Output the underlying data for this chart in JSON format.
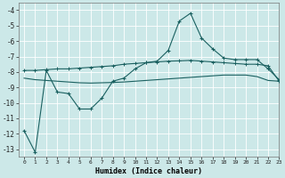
{
  "xlabel": "Humidex (Indice chaleur)",
  "background_color": "#cce8e8",
  "grid_color": "#b0d8d8",
  "line_color": "#1a6060",
  "xlim": [
    -0.5,
    23
  ],
  "ylim": [
    -13.5,
    -3.5
  ],
  "yticks": [
    -4,
    -5,
    -6,
    -7,
    -8,
    -9,
    -10,
    -11,
    -12,
    -13
  ],
  "xticks": [
    0,
    1,
    2,
    3,
    4,
    5,
    6,
    7,
    8,
    9,
    10,
    11,
    12,
    13,
    14,
    15,
    16,
    17,
    18,
    19,
    20,
    21,
    22,
    23
  ],
  "series1_x": [
    0,
    1,
    2,
    3,
    4,
    5,
    6,
    7,
    8,
    9,
    10,
    11,
    12,
    13,
    14,
    15,
    16,
    17,
    18,
    19,
    20,
    21,
    22,
    23
  ],
  "series1_y": [
    -11.8,
    -13.2,
    -7.9,
    -9.3,
    -9.4,
    -10.4,
    -10.4,
    -9.7,
    -8.6,
    -8.4,
    -7.8,
    -7.4,
    -7.3,
    -6.6,
    -4.7,
    -4.2,
    -5.8,
    -6.5,
    -7.1,
    -7.2,
    -7.2,
    -7.2,
    -7.8,
    -8.5
  ],
  "series2_x": [
    0,
    1,
    2,
    3,
    4,
    5,
    6,
    7,
    8,
    9,
    10,
    11,
    12,
    13,
    14,
    15,
    16,
    17,
    18,
    19,
    20,
    21,
    22,
    23
  ],
  "series2_y": [
    -7.9,
    -7.9,
    -7.85,
    -7.8,
    -7.8,
    -7.75,
    -7.7,
    -7.65,
    -7.6,
    -7.5,
    -7.45,
    -7.4,
    -7.35,
    -7.3,
    -7.28,
    -7.25,
    -7.3,
    -7.35,
    -7.4,
    -7.45,
    -7.5,
    -7.5,
    -7.6,
    -8.6
  ],
  "series3_x": [
    0,
    1,
    2,
    3,
    4,
    5,
    6,
    7,
    8,
    9,
    10,
    11,
    12,
    13,
    14,
    15,
    16,
    17,
    18,
    19,
    20,
    21,
    22,
    23
  ],
  "series3_y": [
    -8.4,
    -8.5,
    -8.55,
    -8.6,
    -8.65,
    -8.7,
    -8.72,
    -8.7,
    -8.68,
    -8.65,
    -8.6,
    -8.55,
    -8.5,
    -8.45,
    -8.4,
    -8.35,
    -8.3,
    -8.25,
    -8.2,
    -8.2,
    -8.2,
    -8.3,
    -8.55,
    -8.6
  ]
}
